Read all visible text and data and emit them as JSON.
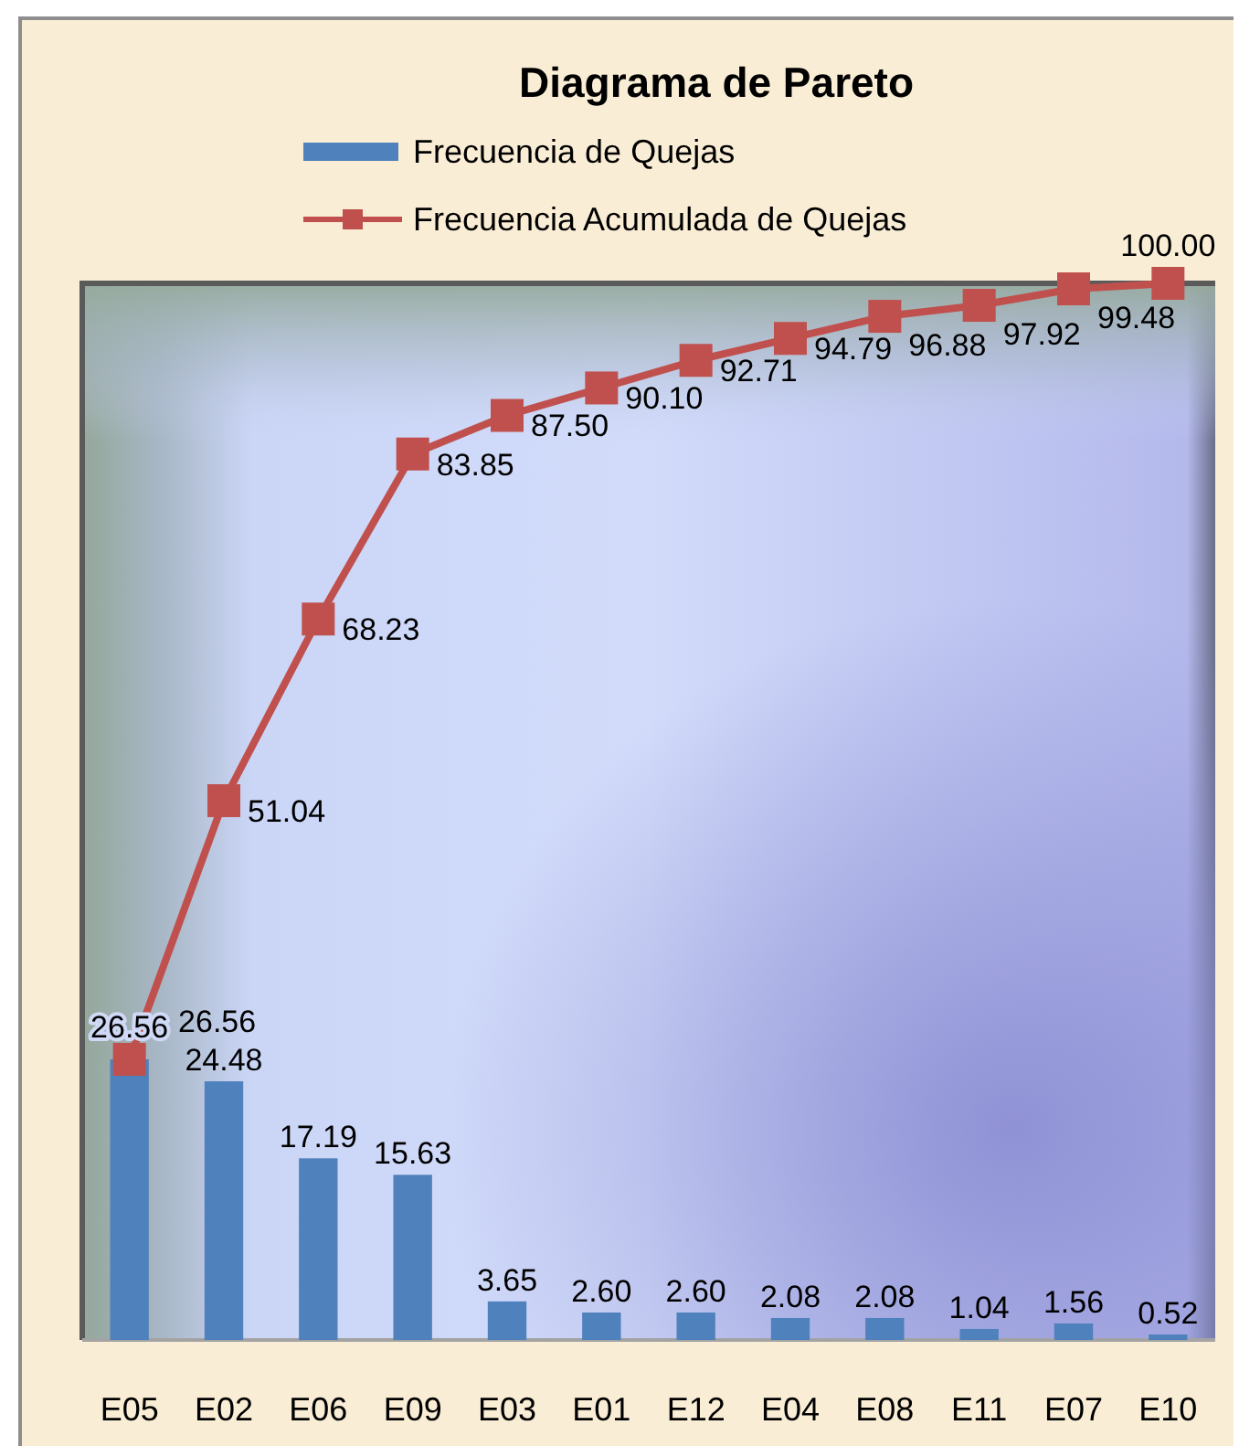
{
  "chart_data": {
    "type": "bar",
    "title": "Diagrama de Pareto",
    "categories": [
      "E05",
      "E02",
      "E06",
      "E09",
      "E03",
      "E01",
      "E12",
      "E04",
      "E08",
      "E11",
      "E07",
      "E10"
    ],
    "ylim": [
      0,
      100
    ],
    "legend": "top",
    "marker": "square",
    "series": [
      {
        "name": "Frecuencia de Quejas",
        "color": "#4f81bd",
        "values": [
          26.56,
          24.48,
          17.19,
          15.63,
          3.65,
          2.6,
          2.6,
          2.08,
          2.08,
          1.04,
          1.56,
          0.52
        ],
        "value_labels": [
          "26.56",
          "24.48",
          "17.19",
          "15.63",
          "3.65",
          "2.60",
          "2.60",
          "2.08",
          "2.08",
          "1.04",
          "1.56",
          "0.52"
        ]
      },
      {
        "name": "Frecuencia Acumulada de Quejas",
        "type": "line",
        "color": "#c0504d",
        "values": [
          26.56,
          51.04,
          68.23,
          83.85,
          87.5,
          90.1,
          92.71,
          94.79,
          96.88,
          97.92,
          99.48,
          100
        ],
        "value_labels": [
          "26.56",
          "51.04",
          "68.23",
          "83.85",
          "87.50",
          "90.10",
          "92.71",
          "94.79",
          "96.88",
          "97.92",
          "99.48",
          "100.00"
        ]
      }
    ]
  }
}
